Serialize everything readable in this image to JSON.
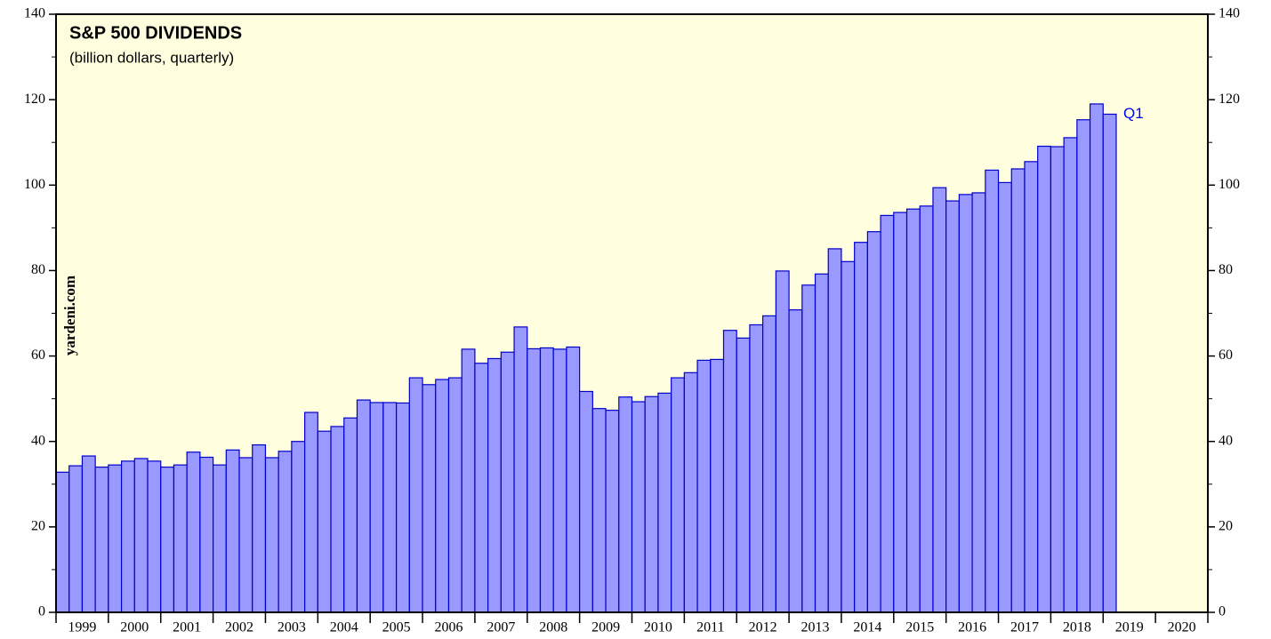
{
  "chart_data": {
    "type": "bar",
    "title": "S&P 500 DIVIDENDS",
    "subtitle": "(billion dollars, quarterly)",
    "source": "yardeni.com",
    "annotation": "Q1",
    "years": [
      "1999",
      "2000",
      "2001",
      "2002",
      "2003",
      "2004",
      "2005",
      "2006",
      "2007",
      "2008",
      "2009",
      "2010",
      "2011",
      "2012",
      "2013",
      "2014",
      "2015",
      "2016",
      "2017",
      "2018",
      "2019",
      "2020"
    ],
    "values": [
      32.8,
      34.3,
      36.6,
      34.0,
      34.5,
      35.4,
      36.0,
      35.4,
      34.0,
      34.5,
      37.5,
      36.3,
      34.5,
      38.0,
      36.2,
      39.2,
      36.2,
      37.7,
      40.0,
      46.8,
      42.4,
      43.5,
      45.5,
      49.7,
      49.1,
      49.1,
      49.0,
      54.9,
      53.3,
      54.5,
      54.9,
      61.6,
      58.3,
      59.4,
      60.9,
      66.8,
      61.7,
      61.9,
      61.6,
      62.1,
      51.7,
      47.7,
      47.3,
      50.4,
      49.3,
      50.5,
      51.3,
      54.9,
      56.1,
      59.0,
      59.2,
      66.0,
      64.2,
      67.3,
      69.4,
      79.9,
      70.8,
      76.6,
      79.2,
      85.1,
      82.1,
      86.6,
      89.1,
      92.9,
      93.6,
      94.4,
      95.1,
      99.4,
      96.3,
      97.8,
      98.2,
      103.5,
      100.6,
      103.8,
      105.5,
      109.1,
      109.0,
      111.1,
      115.3,
      119.0,
      116.6
    ],
    "color": "#9999ff",
    "edge_color": "#0000cc",
    "ylim": [
      0,
      140
    ],
    "yticks": [
      0,
      20,
      40,
      60,
      80,
      100,
      120,
      140
    ],
    "yminorticks": [
      10,
      30,
      50,
      70,
      90,
      110,
      130
    ],
    "background": "#ffffe0"
  }
}
